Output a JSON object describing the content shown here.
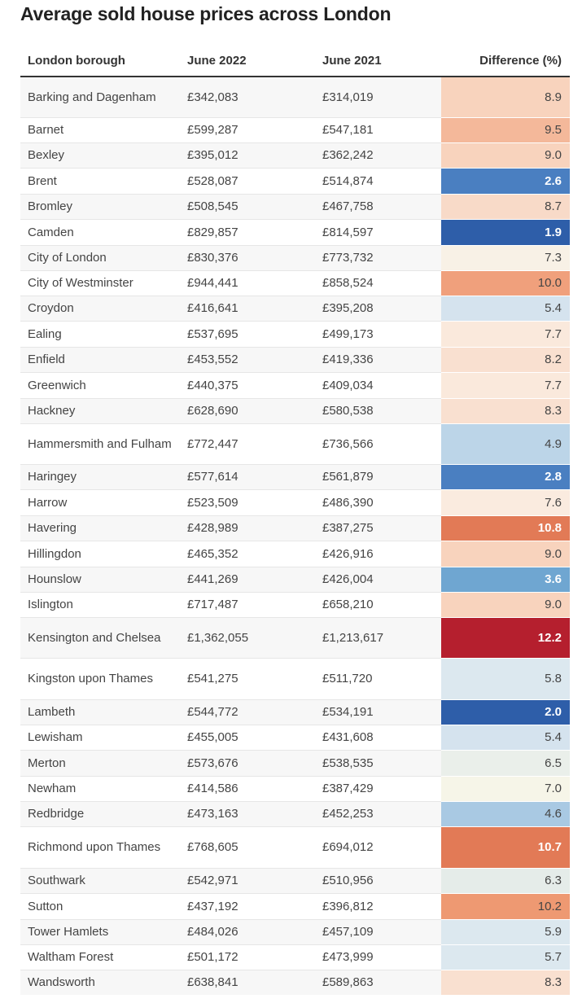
{
  "title": "Average sold house prices across London",
  "columns": [
    "London borough",
    "June 2022",
    "June 2021",
    "Difference (%)"
  ],
  "rows": [
    {
      "borough": "Barking and Dagenham",
      "june2022": "£342,083",
      "june2021": "£314,019",
      "diff": "8.9",
      "color": "#f8d3bd",
      "dark": false
    },
    {
      "borough": "Barnet",
      "june2022": "£599,287",
      "june2021": "£547,181",
      "diff": "9.5",
      "color": "#f4b89a",
      "dark": false
    },
    {
      "borough": "Bexley",
      "june2022": "£395,012",
      "june2021": "£362,242",
      "diff": "9.0",
      "color": "#f8d3bd",
      "dark": false
    },
    {
      "borough": "Brent",
      "june2022": "£528,087",
      "june2021": "£514,874",
      "diff": "2.6",
      "color": "#4a7fc1",
      "dark": true
    },
    {
      "borough": "Bromley",
      "june2022": "£508,545",
      "june2021": "£467,758",
      "diff": "8.7",
      "color": "#f8dac8",
      "dark": false
    },
    {
      "borough": "Camden",
      "june2022": "£829,857",
      "june2021": "£814,597",
      "diff": "1.9",
      "color": "#2e5ea9",
      "dark": true
    },
    {
      "borough": "City of London",
      "june2022": "£830,376",
      "june2021": "£773,732",
      "diff": "7.3",
      "color": "#f8f1e6",
      "dark": false
    },
    {
      "borough": "City of Westminster",
      "june2022": "£944,441",
      "june2021": "£858,524",
      "diff": "10.0",
      "color": "#f0a07c",
      "dark": false
    },
    {
      "borough": "Croydon",
      "june2022": "£416,641",
      "june2021": "£395,208",
      "diff": "5.4",
      "color": "#d5e3ee",
      "dark": false
    },
    {
      "borough": "Ealing",
      "june2022": "£537,695",
      "june2021": "£499,173",
      "diff": "7.7",
      "color": "#fae9dc",
      "dark": false
    },
    {
      "borough": "Enfield",
      "june2022": "£453,552",
      "june2021": "£419,336",
      "diff": "8.2",
      "color": "#f9e0d0",
      "dark": false
    },
    {
      "borough": "Greenwich",
      "june2022": "£440,375",
      "june2021": "£409,034",
      "diff": "7.7",
      "color": "#fae9dc",
      "dark": false
    },
    {
      "borough": "Hackney",
      "june2022": "£628,690",
      "june2021": "£580,538",
      "diff": "8.3",
      "color": "#f9e0d0",
      "dark": false
    },
    {
      "borough": "Hammersmith and Fulham",
      "june2022": "£772,447",
      "june2021": "£736,566",
      "diff": "4.9",
      "color": "#bcd5e8",
      "dark": false
    },
    {
      "borough": "Haringey",
      "june2022": "£577,614",
      "june2021": "£561,879",
      "diff": "2.8",
      "color": "#4a7fc1",
      "dark": true
    },
    {
      "borough": "Harrow",
      "june2022": "£523,509",
      "june2021": "£486,390",
      "diff": "7.6",
      "color": "#faebdf",
      "dark": false
    },
    {
      "borough": "Havering",
      "june2022": "£428,989",
      "june2021": "£387,275",
      "diff": "10.8",
      "color": "#e27a56",
      "dark": true
    },
    {
      "borough": "Hillingdon",
      "june2022": "£465,352",
      "june2021": "£426,916",
      "diff": "9.0",
      "color": "#f8d3bd",
      "dark": false
    },
    {
      "borough": "Hounslow",
      "june2022": "£441,269",
      "june2021": "£426,004",
      "diff": "3.6",
      "color": "#6fa6d1",
      "dark": true
    },
    {
      "borough": "Islington",
      "june2022": "£717,487",
      "june2021": "£658,210",
      "diff": "9.0",
      "color": "#f8d3bd",
      "dark": false
    },
    {
      "borough": "Kensington and Chelsea",
      "june2022": "£1,362,055",
      "june2021": "£1,213,617",
      "diff": "12.2",
      "color": "#b51f2e",
      "dark": true
    },
    {
      "borough": "Kingston upon Thames",
      "june2022": "£541,275",
      "june2021": "£511,720",
      "diff": "5.8",
      "color": "#dce8ef",
      "dark": false
    },
    {
      "borough": "Lambeth",
      "june2022": "£544,772",
      "june2021": "£534,191",
      "diff": "2.0",
      "color": "#2e5ea9",
      "dark": true
    },
    {
      "borough": "Lewisham",
      "june2022": "£455,005",
      "june2021": "£431,608",
      "diff": "5.4",
      "color": "#d5e3ee",
      "dark": false
    },
    {
      "borough": "Merton",
      "june2022": "£573,676",
      "june2021": "£538,535",
      "diff": "6.5",
      "color": "#eaefea",
      "dark": false
    },
    {
      "borough": "Newham",
      "june2022": "£414,586",
      "june2021": "£387,429",
      "diff": "7.0",
      "color": "#f6f5e8",
      "dark": false
    },
    {
      "borough": "Redbridge",
      "june2022": "£473,163",
      "june2021": "£452,253",
      "diff": "4.6",
      "color": "#a9c9e3",
      "dark": false
    },
    {
      "borough": "Richmond upon Thames",
      "june2022": "£768,605",
      "june2021": "£694,012",
      "diff": "10.7",
      "color": "#e27a56",
      "dark": true
    },
    {
      "borough": "Southwark",
      "june2022": "£542,971",
      "june2021": "£510,956",
      "diff": "6.3",
      "color": "#e5ece9",
      "dark": false
    },
    {
      "borough": "Sutton",
      "june2022": "£437,192",
      "june2021": "£396,812",
      "diff": "10.2",
      "color": "#ee9972",
      "dark": false
    },
    {
      "borough": "Tower Hamlets",
      "june2022": "£484,026",
      "june2021": "£457,109",
      "diff": "5.9",
      "color": "#dce8ef",
      "dark": false
    },
    {
      "borough": "Waltham Forest",
      "june2022": "£501,172",
      "june2021": "£473,999",
      "diff": "5.7",
      "color": "#dce8ef",
      "dark": false
    },
    {
      "borough": "Wandsworth",
      "june2022": "£638,841",
      "june2021": "£589,863",
      "diff": "8.3",
      "color": "#f9e0d0",
      "dark": false
    }
  ]
}
